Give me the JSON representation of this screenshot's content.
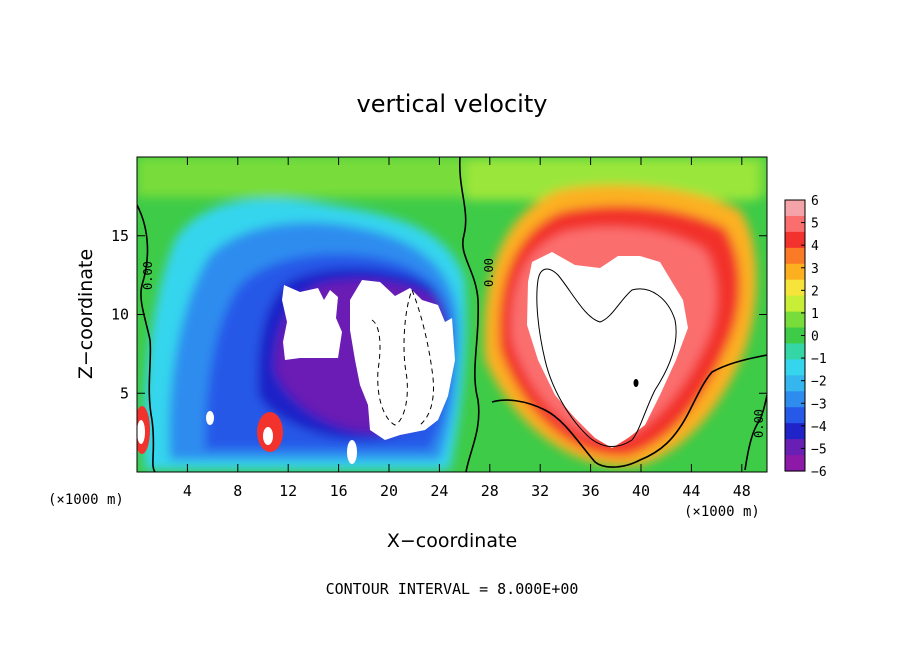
{
  "chart_data": {
    "type": "heatmap",
    "title": "vertical velocity",
    "xlabel": "X−coordinate",
    "ylabel": "Z−coordinate",
    "x_unit_left": "(×1000 m)",
    "x_unit_right": "(×1000 m)",
    "xlim": [
      0,
      50
    ],
    "ylim": [
      0,
      20
    ],
    "x_ticks": [
      4,
      8,
      12,
      16,
      20,
      24,
      28,
      32,
      36,
      40,
      44,
      48
    ],
    "y_ticks": [
      5,
      10,
      15
    ],
    "colorbar": {
      "labels": [
        "6",
        "5",
        "4",
        "3",
        "2",
        "1",
        "0",
        "−1",
        "−2",
        "−3",
        "−4",
        "−5",
        "−6"
      ],
      "min": -6,
      "max": 6,
      "colors": [
        "#f4a3a8",
        "#fb6e6e",
        "#f2322c",
        "#fb7a26",
        "#fcb020",
        "#f7e43a",
        "#c9ee37",
        "#78dd3b",
        "#3ecb48",
        "#35d6a6",
        "#35d5ee",
        "#35b6ef",
        "#2f8cef",
        "#2759e8",
        "#1f23c8",
        "#6a1fb4",
        "#8d19a8"
      ]
    },
    "contour_labels": [
      "0.00",
      "0.00",
      "0.00"
    ],
    "footnote": "CONTOUR INTERVAL = 8.000E+00",
    "features": [
      {
        "kind": "downdraft",
        "x": [
          1,
          26
        ],
        "z": [
          0.5,
          17.5
        ],
        "peak": -6
      },
      {
        "kind": "updraft",
        "x": [
          29,
          46
        ],
        "z": [
          1,
          16.5
        ],
        "peak": 6
      }
    ]
  }
}
